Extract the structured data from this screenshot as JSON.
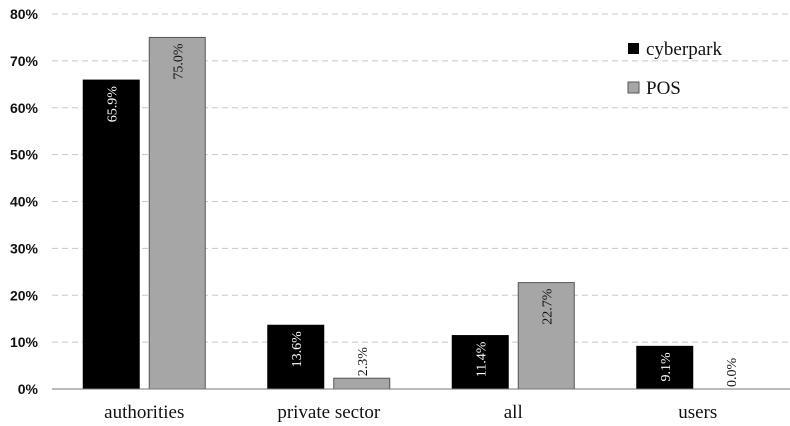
{
  "chart_data": {
    "type": "bar",
    "categories": [
      "authorities",
      "private sector",
      "all",
      "users"
    ],
    "series": [
      {
        "name": "cyberpark",
        "values": [
          65.9,
          13.6,
          11.4,
          9.1
        ],
        "labels": [
          "65.9%",
          "13.6%",
          "11.4%",
          "9.1%"
        ],
        "color": "#000000"
      },
      {
        "name": "POS",
        "values": [
          75.0,
          2.3,
          22.7,
          0.0
        ],
        "labels": [
          "75.0%",
          "2.3%",
          "22.7%",
          "0.0%"
        ],
        "color": "#a6a6a6"
      }
    ],
    "yticks": [
      "0%",
      "10%",
      "20%",
      "30%",
      "40%",
      "50%",
      "60%",
      "70%",
      "80%"
    ],
    "ylim": [
      0,
      80
    ],
    "grid": true,
    "legend_position": "top-right",
    "title": "",
    "xlabel": "",
    "ylabel": ""
  }
}
